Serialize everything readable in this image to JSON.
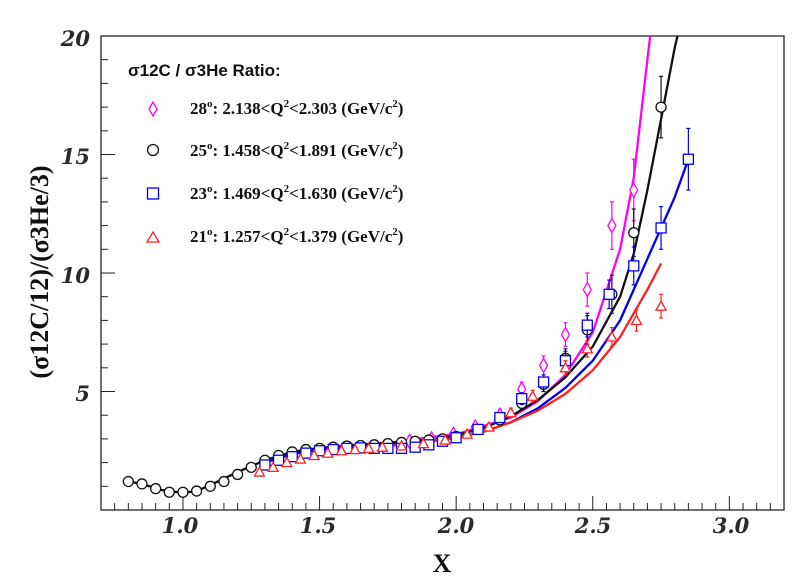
{
  "chart_data": {
    "type": "scatter",
    "title": "",
    "xlabel": "X",
    "ylabel": "(σ12C/12)/(σ3He/3)",
    "xlim": [
      0.7,
      3.2
    ],
    "ylim": [
      0,
      20
    ],
    "xticks": [
      "1.0",
      "1.5",
      "2.0",
      "2.5",
      "3.0"
    ],
    "xtick_values": [
      1.0,
      1.5,
      2.0,
      2.5,
      3.0
    ],
    "yticks": [
      "5",
      "10",
      "15",
      "20"
    ],
    "ytick_values": [
      5,
      10,
      15,
      20
    ],
    "grid": false,
    "legend_position": "top-left",
    "legend_title": "σ12C / σ3He Ratio:",
    "series": [
      {
        "name": "28°: 2.138<Q²<2.303 (GeV/c²)",
        "angle": "28",
        "q2_range": "2.138<Q",
        "q2_upper": "<2.303 (GeV/c",
        "marker": "diamond",
        "color": "#ff00ff",
        "points": [
          {
            "x": 1.83,
            "y": 2.9,
            "err": 0.15
          },
          {
            "x": 1.91,
            "y": 3.0,
            "err": 0.15
          },
          {
            "x": 1.99,
            "y": 3.2,
            "err": 0.15
          },
          {
            "x": 2.07,
            "y": 3.5,
            "err": 0.2
          },
          {
            "x": 2.16,
            "y": 4.0,
            "err": 0.25
          },
          {
            "x": 2.24,
            "y": 5.1,
            "err": 0.3
          },
          {
            "x": 2.32,
            "y": 6.1,
            "err": 0.4
          },
          {
            "x": 2.4,
            "y": 7.4,
            "err": 0.5
          },
          {
            "x": 2.48,
            "y": 9.3,
            "err": 0.7
          },
          {
            "x": 2.57,
            "y": 12.0,
            "err": 1.0
          },
          {
            "x": 2.65,
            "y": 13.5,
            "err": 1.3
          }
        ],
        "curve": [
          [
            1.8,
            2.92
          ],
          [
            2.0,
            3.2
          ],
          [
            2.2,
            3.9
          ],
          [
            2.3,
            4.6
          ],
          [
            2.4,
            5.7
          ],
          [
            2.5,
            7.5
          ],
          [
            2.6,
            11.0
          ],
          [
            2.65,
            14.0
          ],
          [
            2.7,
            19.0
          ],
          [
            2.72,
            21.0
          ]
        ]
      },
      {
        "name": "25°: 1.458<Q²<1.891 (GeV/c²)",
        "angle": "25",
        "q2_range": "1.458<Q",
        "q2_upper": "<1.891 (GeV/c",
        "marker": "circle",
        "color": "#111111",
        "points": [
          {
            "x": 0.8,
            "y": 1.2,
            "err": 0.1
          },
          {
            "x": 0.85,
            "y": 1.1,
            "err": 0.1
          },
          {
            "x": 0.9,
            "y": 0.9,
            "err": 0.1
          },
          {
            "x": 0.95,
            "y": 0.75,
            "err": 0.1
          },
          {
            "x": 1.0,
            "y": 0.75,
            "err": 0.1
          },
          {
            "x": 1.05,
            "y": 0.8,
            "err": 0.1
          },
          {
            "x": 1.1,
            "y": 1.0,
            "err": 0.1
          },
          {
            "x": 1.15,
            "y": 1.2,
            "err": 0.1
          },
          {
            "x": 1.2,
            "y": 1.5,
            "err": 0.1
          },
          {
            "x": 1.25,
            "y": 1.8,
            "err": 0.1
          },
          {
            "x": 1.3,
            "y": 2.1,
            "err": 0.1
          },
          {
            "x": 1.35,
            "y": 2.3,
            "err": 0.1
          },
          {
            "x": 1.4,
            "y": 2.45,
            "err": 0.1
          },
          {
            "x": 1.45,
            "y": 2.55,
            "err": 0.1
          },
          {
            "x": 1.5,
            "y": 2.6,
            "err": 0.1
          },
          {
            "x": 1.55,
            "y": 2.65,
            "err": 0.1
          },
          {
            "x": 1.6,
            "y": 2.7,
            "err": 0.1
          },
          {
            "x": 1.65,
            "y": 2.72,
            "err": 0.1
          },
          {
            "x": 1.7,
            "y": 2.75,
            "err": 0.1
          },
          {
            "x": 1.75,
            "y": 2.8,
            "err": 0.1
          },
          {
            "x": 1.8,
            "y": 2.85,
            "err": 0.1
          },
          {
            "x": 1.85,
            "y": 2.9,
            "err": 0.1
          },
          {
            "x": 1.9,
            "y": 2.95,
            "err": 0.1
          },
          {
            "x": 1.95,
            "y": 3.0,
            "err": 0.1
          },
          {
            "x": 2.0,
            "y": 3.1,
            "err": 0.1
          },
          {
            "x": 2.08,
            "y": 3.4,
            "err": 0.15
          },
          {
            "x": 2.16,
            "y": 3.8,
            "err": 0.2
          },
          {
            "x": 2.24,
            "y": 4.5,
            "err": 0.25
          },
          {
            "x": 2.32,
            "y": 5.3,
            "err": 0.3
          },
          {
            "x": 2.4,
            "y": 6.4,
            "err": 0.4
          },
          {
            "x": 2.48,
            "y": 7.6,
            "err": 0.6
          },
          {
            "x": 2.57,
            "y": 9.1,
            "err": 0.8
          },
          {
            "x": 2.65,
            "y": 11.7,
            "err": 1.0
          },
          {
            "x": 2.75,
            "y": 17.0,
            "err": 1.3
          }
        ],
        "curve": [
          [
            0.78,
            1.25
          ],
          [
            0.85,
            1.1
          ],
          [
            0.92,
            0.85
          ],
          [
            1.0,
            0.72
          ],
          [
            1.05,
            0.8
          ],
          [
            1.1,
            1.05
          ],
          [
            1.2,
            1.6
          ],
          [
            1.3,
            2.1
          ],
          [
            1.4,
            2.45
          ],
          [
            1.5,
            2.62
          ],
          [
            1.6,
            2.72
          ],
          [
            1.7,
            2.8
          ],
          [
            1.8,
            2.88
          ],
          [
            1.9,
            2.98
          ],
          [
            2.0,
            3.15
          ],
          [
            2.1,
            3.45
          ],
          [
            2.2,
            3.95
          ],
          [
            2.3,
            4.65
          ],
          [
            2.4,
            5.6
          ],
          [
            2.5,
            6.9
          ],
          [
            2.6,
            9.0
          ],
          [
            2.65,
            10.8
          ],
          [
            2.7,
            13.5
          ],
          [
            2.75,
            16.5
          ],
          [
            2.8,
            19.5
          ],
          [
            2.82,
            20.5
          ]
        ]
      },
      {
        "name": "23°: 1.469<Q²<1.630 (GeV/c²)",
        "angle": "23",
        "q2_range": "1.469<Q",
        "q2_upper": "<1.630 (GeV/c",
        "marker": "square",
        "color": "#0000ee",
        "points": [
          {
            "x": 1.3,
            "y": 1.9,
            "err": 0.1
          },
          {
            "x": 1.35,
            "y": 2.1,
            "err": 0.1
          },
          {
            "x": 1.4,
            "y": 2.25,
            "err": 0.1
          },
          {
            "x": 1.45,
            "y": 2.4,
            "err": 0.1
          },
          {
            "x": 1.5,
            "y": 2.5,
            "err": 0.1
          },
          {
            "x": 1.55,
            "y": 2.55,
            "err": 0.1
          },
          {
            "x": 1.6,
            "y": 2.6,
            "err": 0.1
          },
          {
            "x": 1.65,
            "y": 2.62,
            "err": 0.1
          },
          {
            "x": 1.7,
            "y": 2.6,
            "err": 0.1
          },
          {
            "x": 1.75,
            "y": 2.6,
            "err": 0.1
          },
          {
            "x": 1.8,
            "y": 2.6,
            "err": 0.1
          },
          {
            "x": 1.85,
            "y": 2.65,
            "err": 0.1
          },
          {
            "x": 1.9,
            "y": 2.75,
            "err": 0.1
          },
          {
            "x": 1.95,
            "y": 2.9,
            "err": 0.1
          },
          {
            "x": 2.0,
            "y": 3.05,
            "err": 0.1
          },
          {
            "x": 2.08,
            "y": 3.4,
            "err": 0.15
          },
          {
            "x": 2.16,
            "y": 3.9,
            "err": 0.2
          },
          {
            "x": 2.24,
            "y": 4.7,
            "err": 0.25
          },
          {
            "x": 2.32,
            "y": 5.4,
            "err": 0.3
          },
          {
            "x": 2.4,
            "y": 6.3,
            "err": 0.4
          },
          {
            "x": 2.48,
            "y": 7.8,
            "err": 0.5
          },
          {
            "x": 2.56,
            "y": 9.1,
            "err": 0.6
          },
          {
            "x": 2.65,
            "y": 10.3,
            "err": 0.8
          },
          {
            "x": 2.75,
            "y": 11.9,
            "err": 0.9
          },
          {
            "x": 2.85,
            "y": 14.8,
            "err": 1.3
          }
        ],
        "curve": [
          [
            1.3,
            2.0
          ],
          [
            1.4,
            2.35
          ],
          [
            1.5,
            2.55
          ],
          [
            1.6,
            2.65
          ],
          [
            1.7,
            2.72
          ],
          [
            1.8,
            2.8
          ],
          [
            1.9,
            2.9
          ],
          [
            2.0,
            3.05
          ],
          [
            2.1,
            3.3
          ],
          [
            2.2,
            3.7
          ],
          [
            2.3,
            4.3
          ],
          [
            2.4,
            5.15
          ],
          [
            2.5,
            6.3
          ],
          [
            2.6,
            8.0
          ],
          [
            2.7,
            10.6
          ],
          [
            2.8,
            13.2
          ],
          [
            2.85,
            14.8
          ]
        ]
      },
      {
        "name": "21°: 1.257<Q²<1.379 (GeV/c²)",
        "angle": "21",
        "q2_range": "1.257<Q",
        "q2_upper": "<1.379 (GeV/c",
        "marker": "triangle",
        "color": "#ff2020",
        "points": [
          {
            "x": 1.28,
            "y": 1.6,
            "err": 0.1
          },
          {
            "x": 1.33,
            "y": 1.8,
            "err": 0.1
          },
          {
            "x": 1.38,
            "y": 2.0,
            "err": 0.1
          },
          {
            "x": 1.43,
            "y": 2.15,
            "err": 0.1
          },
          {
            "x": 1.48,
            "y": 2.3,
            "err": 0.1
          },
          {
            "x": 1.53,
            "y": 2.4,
            "err": 0.1
          },
          {
            "x": 1.58,
            "y": 2.5,
            "err": 0.1
          },
          {
            "x": 1.63,
            "y": 2.55,
            "err": 0.1
          },
          {
            "x": 1.68,
            "y": 2.6,
            "err": 0.1
          },
          {
            "x": 1.73,
            "y": 2.65,
            "err": 0.1
          },
          {
            "x": 1.8,
            "y": 2.7,
            "err": 0.1
          },
          {
            "x": 1.88,
            "y": 2.8,
            "err": 0.1
          },
          {
            "x": 1.96,
            "y": 2.95,
            "err": 0.1
          },
          {
            "x": 2.04,
            "y": 3.2,
            "err": 0.12
          },
          {
            "x": 2.12,
            "y": 3.5,
            "err": 0.15
          },
          {
            "x": 2.2,
            "y": 4.1,
            "err": 0.2
          },
          {
            "x": 2.28,
            "y": 4.8,
            "err": 0.25
          },
          {
            "x": 2.4,
            "y": 6.0,
            "err": 0.3
          },
          {
            "x": 2.48,
            "y": 6.8,
            "err": 0.35
          },
          {
            "x": 2.57,
            "y": 7.3,
            "err": 0.4
          },
          {
            "x": 2.66,
            "y": 8.0,
            "err": 0.45
          },
          {
            "x": 2.75,
            "y": 8.6,
            "err": 0.5
          }
        ],
        "curve": [
          [
            1.28,
            1.7
          ],
          [
            1.4,
            2.15
          ],
          [
            1.5,
            2.4
          ],
          [
            1.6,
            2.55
          ],
          [
            1.7,
            2.65
          ],
          [
            1.8,
            2.75
          ],
          [
            1.9,
            2.88
          ],
          [
            2.0,
            3.05
          ],
          [
            2.1,
            3.3
          ],
          [
            2.2,
            3.7
          ],
          [
            2.3,
            4.2
          ],
          [
            2.4,
            4.9
          ],
          [
            2.5,
            5.9
          ],
          [
            2.6,
            7.3
          ],
          [
            2.7,
            9.3
          ],
          [
            2.75,
            10.4
          ]
        ]
      }
    ]
  }
}
